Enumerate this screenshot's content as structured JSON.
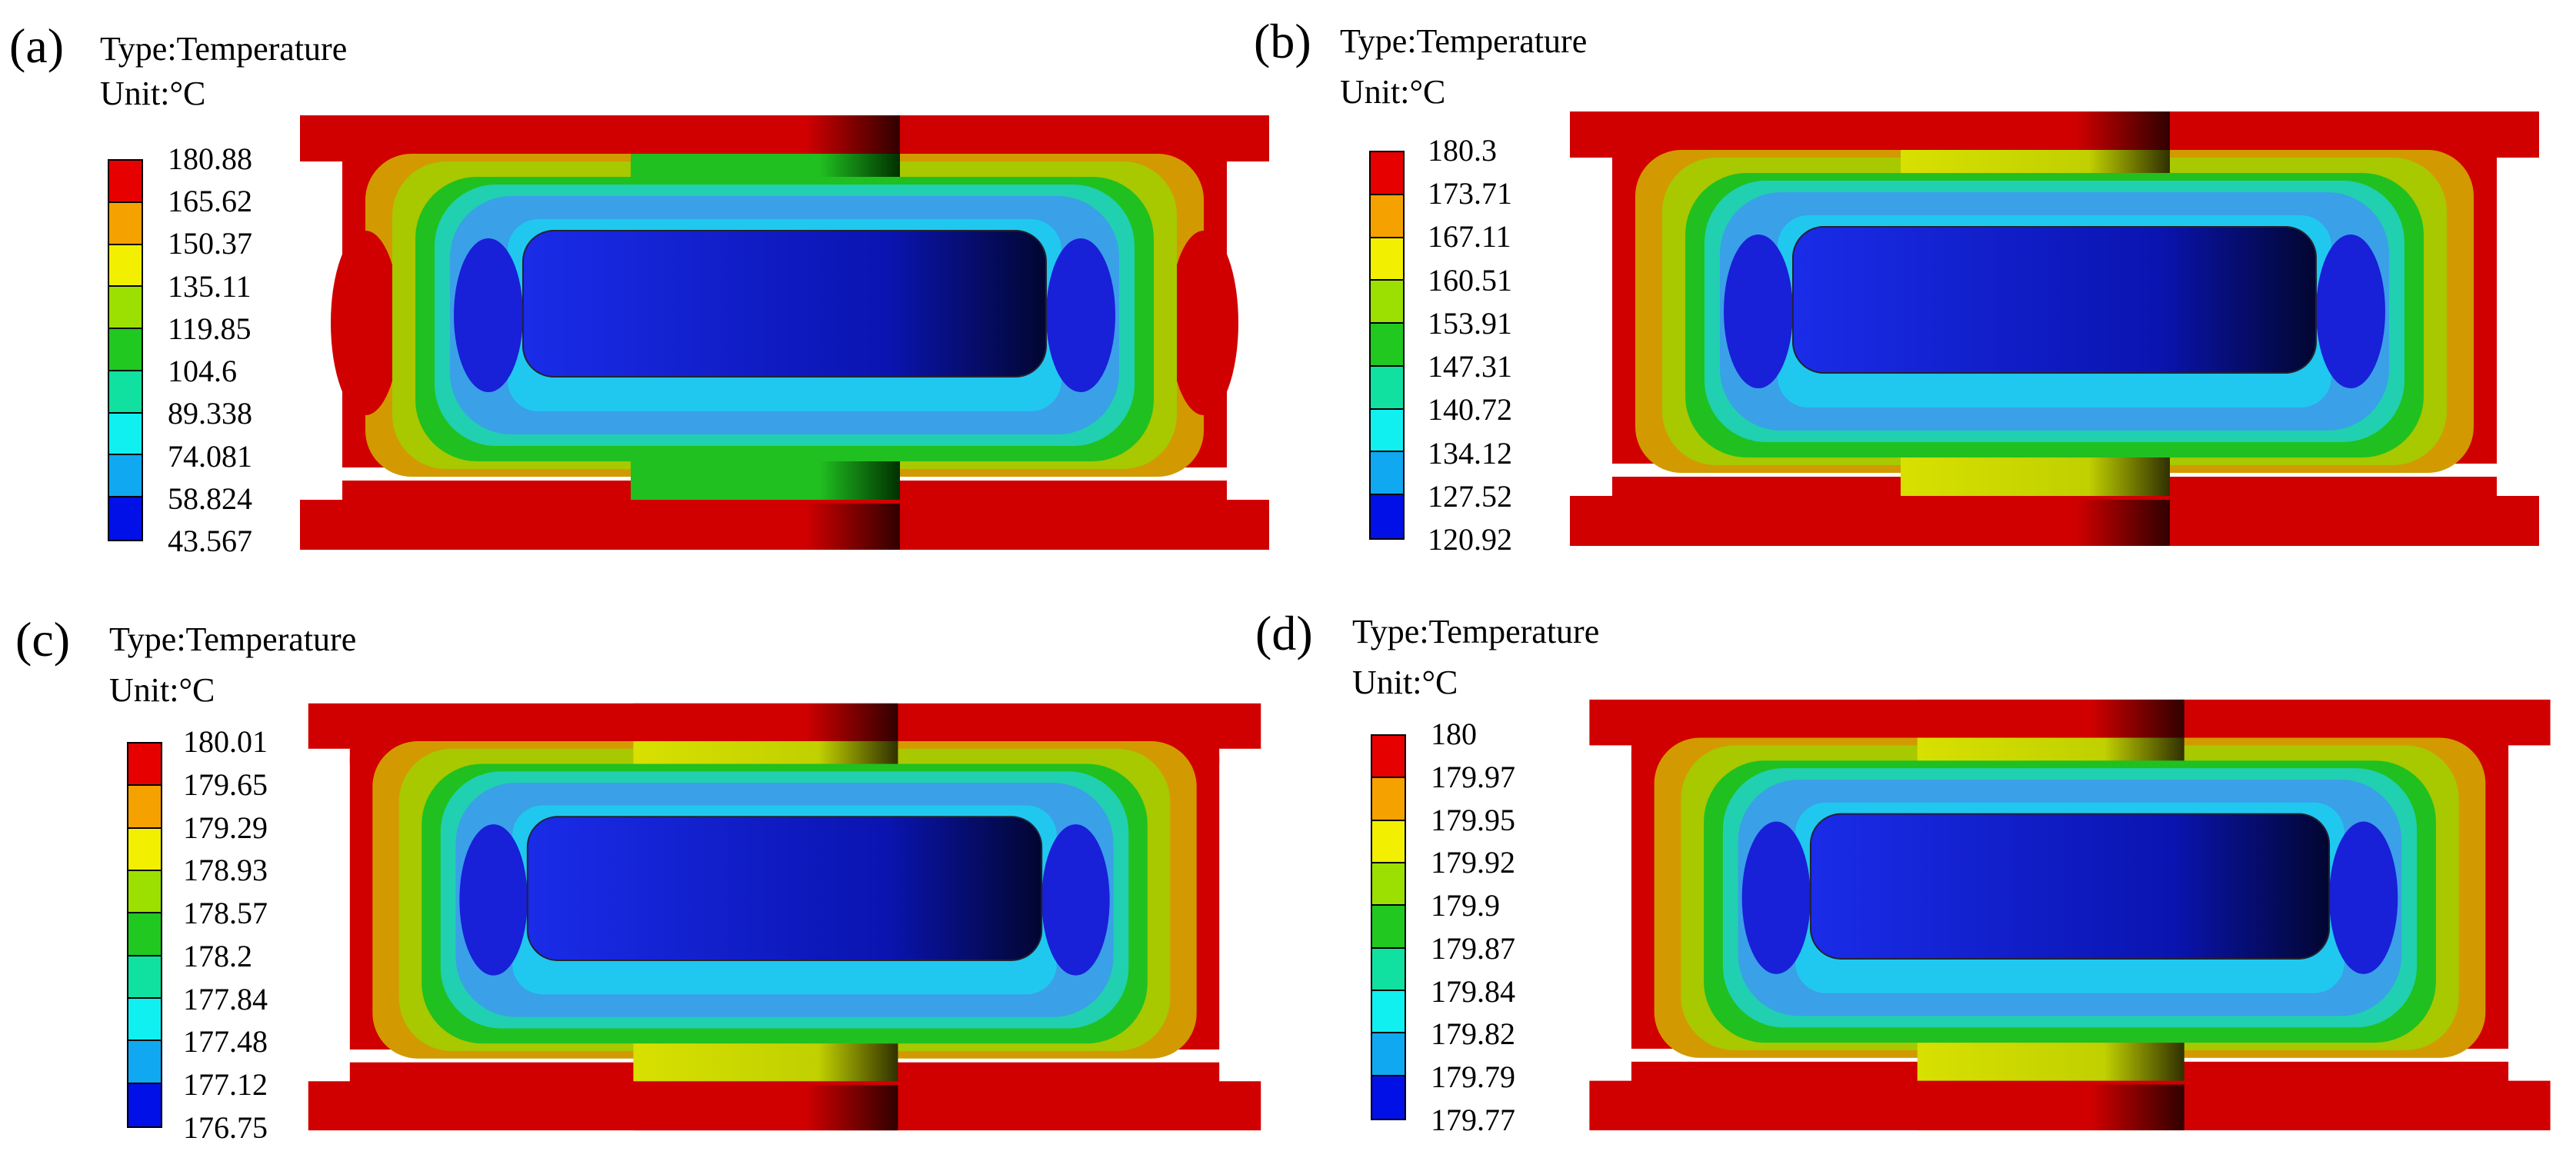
{
  "panels": [
    {
      "label": "(a)",
      "type_label": "Type:Temperature",
      "unit_label": "Unit:°C",
      "scale": [
        "180.88",
        "165.62",
        "150.37",
        "135.11",
        "119.85",
        "104.6",
        "89.338",
        "74.081",
        "58.824",
        "43.567"
      ]
    },
    {
      "label": "(b)",
      "type_label": "Type:Temperature",
      "unit_label": "Unit:°C",
      "scale": [
        "180.3",
        "173.71",
        "167.11",
        "160.51",
        "153.91",
        "147.31",
        "140.72",
        "134.12",
        "127.52",
        "120.92"
      ]
    },
    {
      "label": "(c)",
      "type_label": "Type:Temperature",
      "unit_label": "Unit:°C",
      "scale": [
        "180.01",
        "179.65",
        "179.29",
        "178.93",
        "178.57",
        "178.2",
        "177.84",
        "177.48",
        "177.12",
        "176.75"
      ]
    },
    {
      "label": "(d)",
      "type_label": "Type:Temperature",
      "unit_label": "Unit:°C",
      "scale": [
        "180",
        "179.97",
        "179.95",
        "179.92",
        "179.9",
        "179.87",
        "179.84",
        "179.82",
        "179.79",
        "179.77"
      ]
    }
  ],
  "colors": {
    "scale": [
      "#e60000",
      "#f5a100",
      "#f2f000",
      "#9be000",
      "#20c820",
      "#10e0a0",
      "#10f0f0",
      "#10a8f0",
      "#0010e6"
    ],
    "red": "#d00000",
    "darkred": "#a00000",
    "orange": "#d29a00",
    "yellowgreen": "#a8c800",
    "green": "#20c020",
    "teal": "#20d0b0",
    "cyan": "#20c8f0",
    "lightblue": "#3aa0e8",
    "blue": "#1820d8",
    "deepblue": "#0a10c0"
  }
}
